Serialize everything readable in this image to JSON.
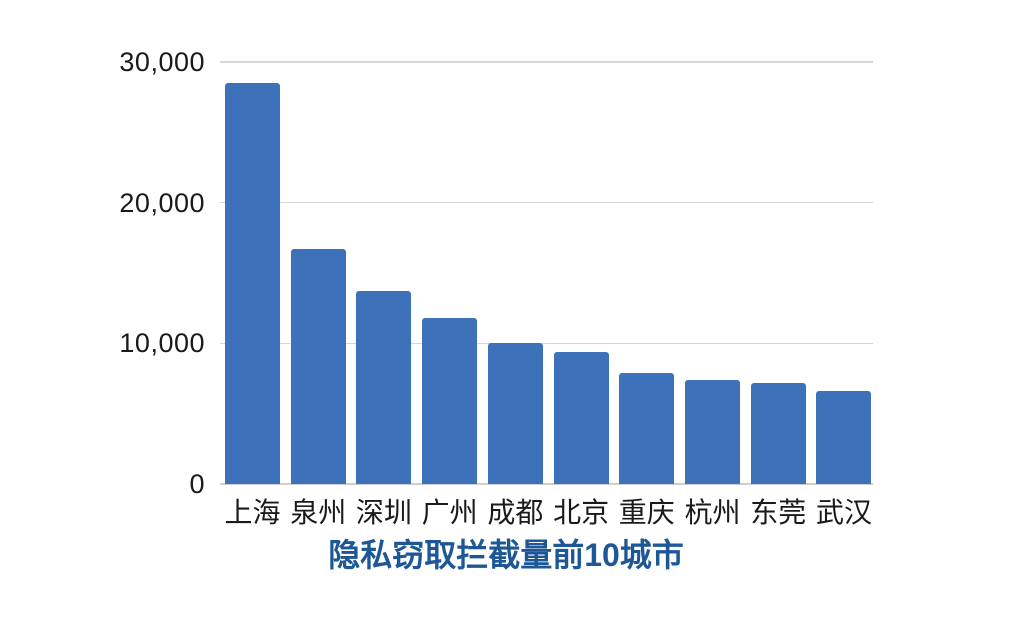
{
  "chart_data": {
    "type": "bar",
    "title": "隐私窃取拦截量前10城市",
    "categories": [
      "上海",
      "泉州",
      "深圳",
      "广州",
      "成都",
      "北京",
      "重庆",
      "杭州",
      "东莞",
      "武汉"
    ],
    "values": [
      28500,
      16700,
      13700,
      11800,
      10000,
      9400,
      7900,
      7400,
      7200,
      6600
    ],
    "xlabel": "",
    "ylabel": "",
    "ylim": [
      0,
      30000
    ],
    "yticks": [
      0,
      10000,
      20000,
      30000
    ],
    "ytick_labels": [
      "0",
      "10,000",
      "20,000",
      "30,000"
    ],
    "grid": true,
    "legend": "none",
    "colors": {
      "bar": "#3d72ba",
      "title": "#1d5796",
      "gridline": "#d6d6d6",
      "axis_text": "#1a1a1a",
      "background": "#ffffff"
    }
  }
}
